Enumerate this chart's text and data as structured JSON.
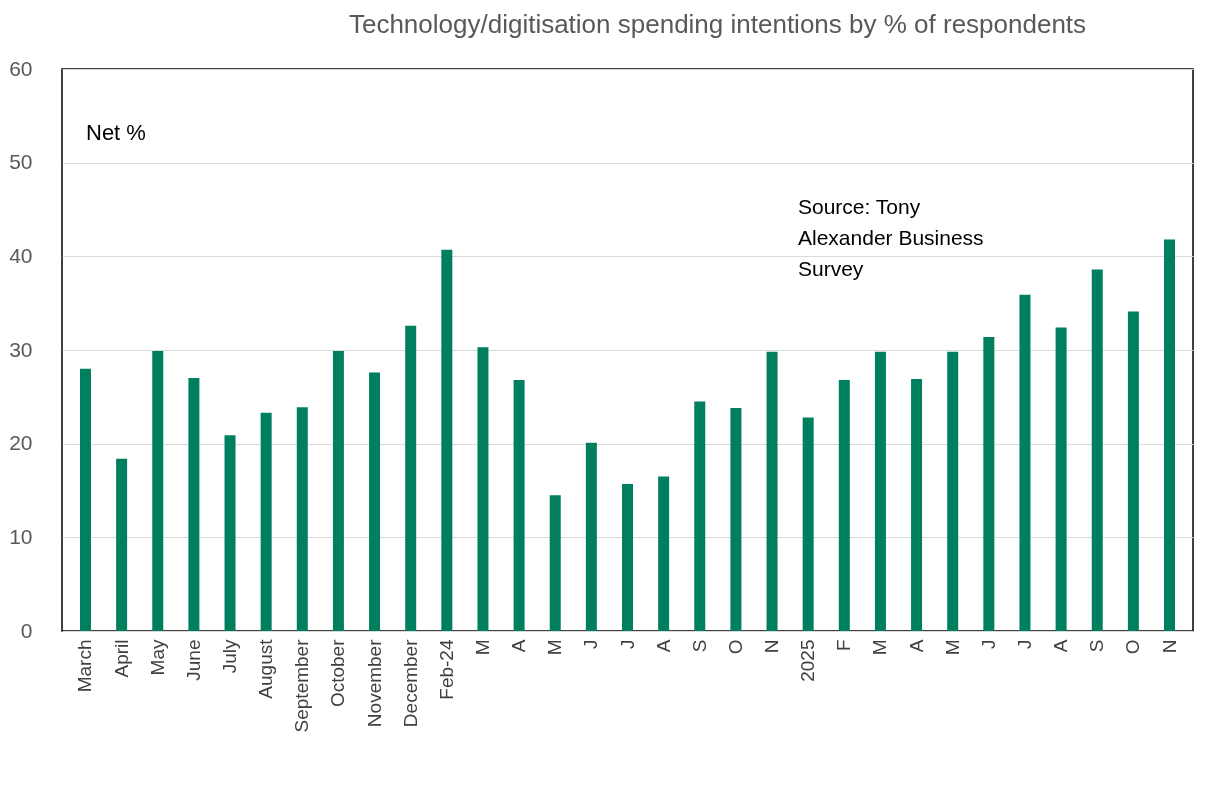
{
  "chart_data": {
    "type": "bar",
    "title": "Technology/digitisation spending intentions by % of respondents",
    "ylabel": "Net %",
    "categories": [
      "March",
      "April",
      "May",
      "June",
      "July",
      "August",
      "September",
      "October",
      "November",
      "December",
      "Feb-24",
      "M",
      "A",
      "M",
      "J",
      "J",
      "A",
      "S",
      "O",
      "N",
      "2025",
      "F",
      "M",
      "A",
      "M",
      "J",
      "J",
      "A",
      "S",
      "O",
      "N"
    ],
    "values": [
      28.0,
      18.4,
      29.9,
      27.0,
      20.9,
      23.3,
      23.9,
      29.9,
      27.6,
      32.6,
      40.7,
      30.3,
      26.8,
      14.5,
      20.1,
      15.7,
      16.5,
      24.5,
      23.8,
      29.8,
      22.8,
      26.8,
      29.8,
      26.9,
      29.8,
      31.4,
      35.9,
      32.4,
      38.6,
      34.1,
      41.8
    ],
    "color": "#007f5f",
    "ylim": [
      0,
      60
    ],
    "yticks": [
      0,
      10,
      20,
      30,
      40,
      50,
      60
    ],
    "grid": "y",
    "annotations": [
      "Source: Tony Alexander Business Survey"
    ]
  }
}
